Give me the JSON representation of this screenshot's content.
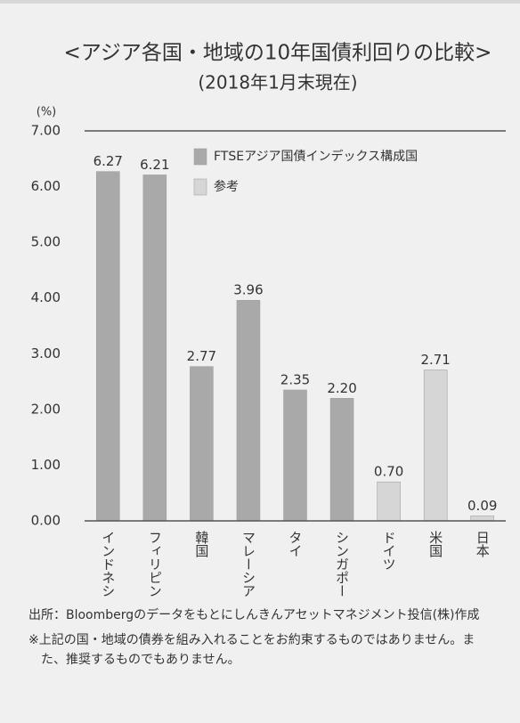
{
  "chart_data": {
    "type": "bar",
    "title": "<アジア各国・地域の10年国債利回りの比較>",
    "subtitle": "(2018年1月末現在)",
    "y_axis_label": "(%)",
    "categories": [
      "インドネシア",
      "フィリピン",
      "韓国",
      "マレーシア",
      "タイ",
      "シンガポール",
      "ドイツ",
      "米国",
      "日本"
    ],
    "series": [
      {
        "name": "FTSEアジア国債インデックス構成国",
        "color": "#a9a9a9",
        "values": [
          6.27,
          6.21,
          2.77,
          3.96,
          2.35,
          2.2,
          null,
          null,
          null
        ],
        "value_labels": [
          "6.27",
          "6.21",
          "2.77",
          "3.96",
          "2.35",
          "2.20",
          null,
          null,
          null
        ]
      },
      {
        "name": "参考",
        "color": "#d6d6d6",
        "values": [
          null,
          null,
          null,
          null,
          null,
          null,
          0.7,
          2.71,
          0.09
        ],
        "value_labels": [
          null,
          null,
          null,
          null,
          null,
          null,
          "0.70",
          "2.71",
          "0.09"
        ]
      }
    ],
    "ylim": [
      0,
      7
    ],
    "yticks": [
      {
        "value": 0,
        "label": "0.00"
      },
      {
        "value": 1,
        "label": "1.00"
      },
      {
        "value": 2,
        "label": "2.00"
      },
      {
        "value": 3,
        "label": "3.00"
      },
      {
        "value": 4,
        "label": "4.00"
      },
      {
        "value": 5,
        "label": "5.00"
      },
      {
        "value": 6,
        "label": "6.00"
      },
      {
        "value": 7,
        "label": "7.00"
      }
    ],
    "grid": false,
    "legend": "top-right",
    "notes": [
      "出所：Bloombergのデータをもとにしんきんアセットマネジメント投信(株)作成",
      "※上記の国・地域の債券を組み入れることをお約束するものではありません。また、推奨するものでもありません。"
    ]
  }
}
